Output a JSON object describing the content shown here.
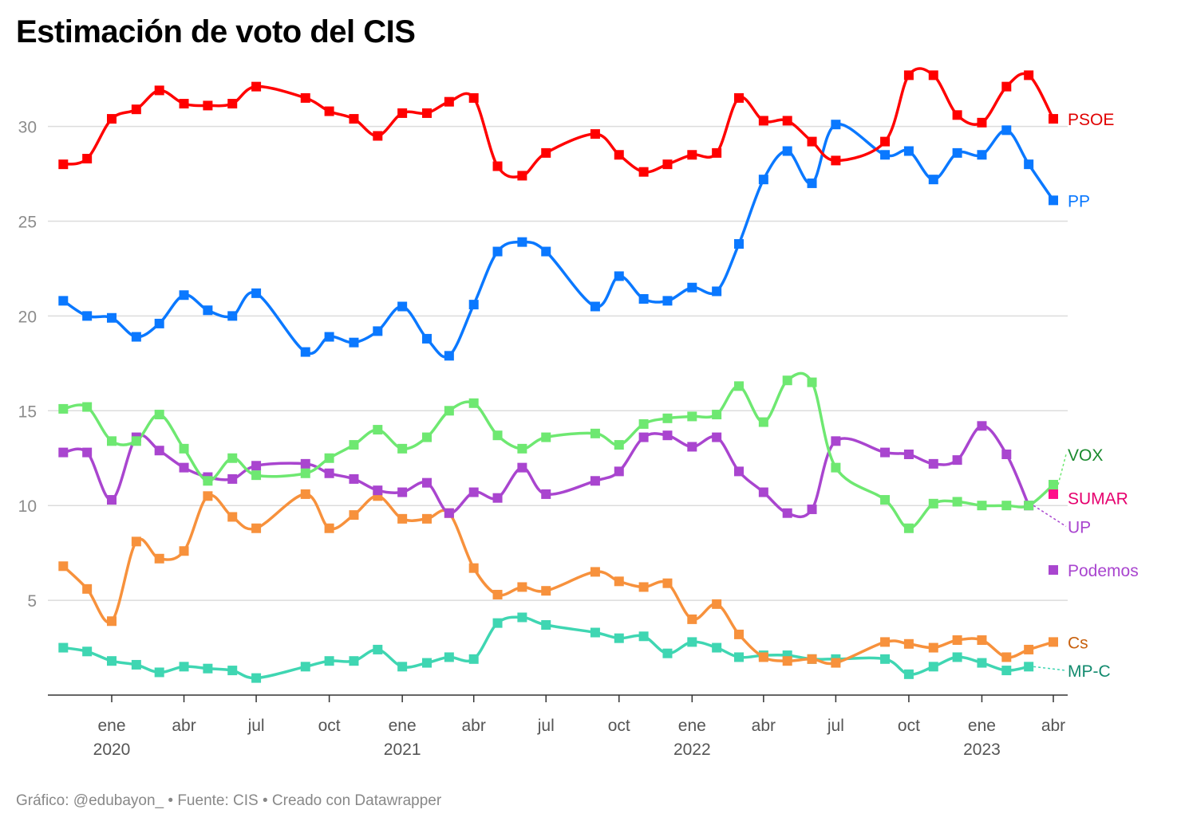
{
  "chart_data": {
    "type": "line",
    "title": "Estimación de voto del CIS",
    "source_note": "Gráfico: @edubayon_ • Fuente: CIS • Creado con Datawrapper",
    "ylim": [
      0,
      32.8
    ],
    "yticks": [
      5,
      10,
      15,
      20,
      25,
      30
    ],
    "xlim": [
      "2019-10-15",
      "2023-04-10"
    ],
    "grid": true,
    "legend": "inline labels at right end of lines",
    "xticks": [
      {
        "date": "2020-01-01",
        "month": "ene",
        "year": "2020"
      },
      {
        "date": "2020-04-01",
        "month": "abr",
        "year": ""
      },
      {
        "date": "2020-07-01",
        "month": "jul",
        "year": ""
      },
      {
        "date": "2020-10-01",
        "month": "oct",
        "year": ""
      },
      {
        "date": "2021-01-01",
        "month": "ene",
        "year": "2021"
      },
      {
        "date": "2021-04-01",
        "month": "abr",
        "year": ""
      },
      {
        "date": "2021-07-01",
        "month": "jul",
        "year": ""
      },
      {
        "date": "2021-10-01",
        "month": "oct",
        "year": ""
      },
      {
        "date": "2022-01-01",
        "month": "ene",
        "year": "2022"
      },
      {
        "date": "2022-04-01",
        "month": "abr",
        "year": ""
      },
      {
        "date": "2022-07-01",
        "month": "jul",
        "year": ""
      },
      {
        "date": "2022-10-01",
        "month": "oct",
        "year": ""
      },
      {
        "date": "2023-01-01",
        "month": "ene",
        "year": "2023"
      },
      {
        "date": "2023-04-01",
        "month": "abr",
        "year": ""
      }
    ],
    "series": [
      {
        "name": "PSOE",
        "color": "#ff0000",
        "label_color": "#e00000",
        "points": [
          [
            "2019-11-01",
            28.0
          ],
          [
            "2019-12-01",
            28.3
          ],
          [
            "2020-01-01",
            30.4
          ],
          [
            "2020-02-01",
            30.9
          ],
          [
            "2020-03-01",
            31.9
          ],
          [
            "2020-04-01",
            31.2
          ],
          [
            "2020-05-01",
            31.1
          ],
          [
            "2020-06-01",
            31.2
          ],
          [
            "2020-07-01",
            32.1
          ],
          [
            "2020-09-01",
            31.5
          ],
          [
            "2020-10-01",
            30.8
          ],
          [
            "2020-11-01",
            30.4
          ],
          [
            "2020-12-01",
            29.5
          ],
          [
            "2021-01-01",
            30.7
          ],
          [
            "2021-02-01",
            30.7
          ],
          [
            "2021-03-01",
            31.3
          ],
          [
            "2021-04-01",
            31.5
          ],
          [
            "2021-05-01",
            27.9
          ],
          [
            "2021-06-01",
            27.4
          ],
          [
            "2021-07-01",
            28.6
          ],
          [
            "2021-09-01",
            29.6
          ],
          [
            "2021-10-01",
            28.5
          ],
          [
            "2021-11-01",
            27.6
          ],
          [
            "2021-12-01",
            28.0
          ],
          [
            "2022-01-01",
            28.5
          ],
          [
            "2022-02-01",
            28.6
          ],
          [
            "2022-03-01",
            31.5
          ],
          [
            "2022-04-01",
            30.3
          ],
          [
            "2022-05-01",
            30.3
          ],
          [
            "2022-06-01",
            29.2
          ],
          [
            "2022-07-01",
            28.2
          ],
          [
            "2022-09-01",
            29.2
          ],
          [
            "2022-10-01",
            32.7
          ],
          [
            "2022-11-01",
            32.7
          ],
          [
            "2022-12-01",
            30.6
          ],
          [
            "2023-01-01",
            30.2
          ],
          [
            "2023-02-01",
            32.1
          ],
          [
            "2023-03-01",
            32.7
          ],
          [
            "2023-04-01",
            30.4
          ]
        ]
      },
      {
        "name": "PP",
        "color": "#0a78ff",
        "label_color": "#0a78ff",
        "points": [
          [
            "2019-11-01",
            20.8
          ],
          [
            "2019-12-01",
            20.0
          ],
          [
            "2020-01-01",
            19.9
          ],
          [
            "2020-02-01",
            18.9
          ],
          [
            "2020-03-01",
            19.6
          ],
          [
            "2020-04-01",
            21.1
          ],
          [
            "2020-05-01",
            20.3
          ],
          [
            "2020-06-01",
            20.0
          ],
          [
            "2020-07-01",
            21.2
          ],
          [
            "2020-09-01",
            18.1
          ],
          [
            "2020-10-01",
            18.9
          ],
          [
            "2020-11-01",
            18.6
          ],
          [
            "2020-12-01",
            19.2
          ],
          [
            "2021-01-01",
            20.5
          ],
          [
            "2021-02-01",
            18.8
          ],
          [
            "2021-03-01",
            17.9
          ],
          [
            "2021-04-01",
            20.6
          ],
          [
            "2021-05-01",
            23.4
          ],
          [
            "2021-06-01",
            23.9
          ],
          [
            "2021-07-01",
            23.4
          ],
          [
            "2021-09-01",
            20.5
          ],
          [
            "2021-10-01",
            22.1
          ],
          [
            "2021-11-01",
            20.9
          ],
          [
            "2021-12-01",
            20.8
          ],
          [
            "2022-01-01",
            21.5
          ],
          [
            "2022-02-01",
            21.3
          ],
          [
            "2022-03-01",
            23.8
          ],
          [
            "2022-04-01",
            27.2
          ],
          [
            "2022-05-01",
            28.7
          ],
          [
            "2022-06-01",
            27.0
          ],
          [
            "2022-07-01",
            30.1
          ],
          [
            "2022-09-01",
            28.5
          ],
          [
            "2022-10-01",
            28.7
          ],
          [
            "2022-11-01",
            27.2
          ],
          [
            "2022-12-01",
            28.6
          ],
          [
            "2023-01-01",
            28.5
          ],
          [
            "2023-02-01",
            29.8
          ],
          [
            "2023-03-01",
            28.0
          ],
          [
            "2023-04-01",
            26.1
          ]
        ]
      },
      {
        "name": "VOX",
        "color": "#6ee871",
        "label_color": "#1a8a2e",
        "label_offset": 1.6,
        "points": [
          [
            "2019-11-01",
            15.1
          ],
          [
            "2019-12-01",
            15.2
          ],
          [
            "2020-01-01",
            13.4
          ],
          [
            "2020-02-01",
            13.4
          ],
          [
            "2020-03-01",
            14.8
          ],
          [
            "2020-04-01",
            13.0
          ],
          [
            "2020-05-01",
            11.3
          ],
          [
            "2020-06-01",
            12.5
          ],
          [
            "2020-07-01",
            11.6
          ],
          [
            "2020-09-01",
            11.7
          ],
          [
            "2020-10-01",
            12.5
          ],
          [
            "2020-11-01",
            13.2
          ],
          [
            "2020-12-01",
            14.0
          ],
          [
            "2021-01-01",
            13.0
          ],
          [
            "2021-02-01",
            13.6
          ],
          [
            "2021-03-01",
            15.0
          ],
          [
            "2021-04-01",
            15.4
          ],
          [
            "2021-05-01",
            13.7
          ],
          [
            "2021-06-01",
            13.0
          ],
          [
            "2021-07-01",
            13.6
          ],
          [
            "2021-09-01",
            13.8
          ],
          [
            "2021-10-01",
            13.2
          ],
          [
            "2021-11-01",
            14.3
          ],
          [
            "2021-12-01",
            14.6
          ],
          [
            "2022-01-01",
            14.7
          ],
          [
            "2022-02-01",
            14.8
          ],
          [
            "2022-03-01",
            16.3
          ],
          [
            "2022-04-01",
            14.4
          ],
          [
            "2022-05-01",
            16.6
          ],
          [
            "2022-06-01",
            16.5
          ],
          [
            "2022-07-01",
            12.0
          ],
          [
            "2022-09-01",
            10.3
          ],
          [
            "2022-10-01",
            8.8
          ],
          [
            "2022-11-01",
            10.1
          ],
          [
            "2022-12-01",
            10.2
          ],
          [
            "2023-01-01",
            10.0
          ],
          [
            "2023-02-01",
            10.0
          ],
          [
            "2023-03-01",
            10.0
          ],
          [
            "2023-04-01",
            11.1
          ]
        ]
      },
      {
        "name": "SUMAR",
        "color": "#ff0d8a",
        "label_color": "#e6006e",
        "label_offset": -0.2,
        "points": [
          [
            "2023-04-01",
            10.6
          ]
        ]
      },
      {
        "name": "UP",
        "color": "#a945cf",
        "label_color": "#a945cf",
        "label_end_date": "2023-03-01",
        "label_offset": -1.1,
        "points": [
          [
            "2019-11-01",
            12.8
          ],
          [
            "2019-12-01",
            12.8
          ],
          [
            "2020-01-01",
            10.3
          ],
          [
            "2020-02-01",
            13.6
          ],
          [
            "2020-03-01",
            12.9
          ],
          [
            "2020-04-01",
            12.0
          ],
          [
            "2020-05-01",
            11.5
          ],
          [
            "2020-06-01",
            11.4
          ],
          [
            "2020-07-01",
            12.1
          ],
          [
            "2020-09-01",
            12.2
          ],
          [
            "2020-10-01",
            11.7
          ],
          [
            "2020-11-01",
            11.4
          ],
          [
            "2020-12-01",
            10.8
          ],
          [
            "2021-01-01",
            10.7
          ],
          [
            "2021-02-01",
            11.2
          ],
          [
            "2021-03-01",
            9.6
          ],
          [
            "2021-04-01",
            10.7
          ],
          [
            "2021-05-01",
            10.4
          ],
          [
            "2021-06-01",
            12.0
          ],
          [
            "2021-07-01",
            10.6
          ],
          [
            "2021-09-01",
            11.3
          ],
          [
            "2021-10-01",
            11.8
          ],
          [
            "2021-11-01",
            13.6
          ],
          [
            "2021-12-01",
            13.7
          ],
          [
            "2022-01-01",
            13.1
          ],
          [
            "2022-02-01",
            13.6
          ],
          [
            "2022-03-01",
            11.8
          ],
          [
            "2022-04-01",
            10.7
          ],
          [
            "2022-05-01",
            9.6
          ],
          [
            "2022-06-01",
            9.8
          ],
          [
            "2022-07-01",
            13.4
          ],
          [
            "2022-09-01",
            12.8
          ],
          [
            "2022-10-01",
            12.7
          ],
          [
            "2022-11-01",
            12.2
          ],
          [
            "2022-12-01",
            12.4
          ],
          [
            "2023-01-01",
            14.2
          ],
          [
            "2023-02-01",
            12.7
          ],
          [
            "2023-03-01",
            10.0
          ]
        ]
      },
      {
        "name": "Podemos",
        "color": "#a945cf",
        "label_color": "#a945cf",
        "points": [
          [
            "2023-04-01",
            6.6
          ]
        ]
      },
      {
        "name": "Cs",
        "color": "#f7913c",
        "label_color": "#c8610e",
        "points": [
          [
            "2019-11-01",
            6.8
          ],
          [
            "2019-12-01",
            5.6
          ],
          [
            "2020-01-01",
            3.9
          ],
          [
            "2020-02-01",
            8.1
          ],
          [
            "2020-03-01",
            7.2
          ],
          [
            "2020-04-01",
            7.6
          ],
          [
            "2020-05-01",
            10.5
          ],
          [
            "2020-06-01",
            9.4
          ],
          [
            "2020-07-01",
            8.8
          ],
          [
            "2020-09-01",
            10.6
          ],
          [
            "2020-10-01",
            8.8
          ],
          [
            "2020-11-01",
            9.5
          ],
          [
            "2020-12-01",
            10.5
          ],
          [
            "2021-01-01",
            9.3
          ],
          [
            "2021-02-01",
            9.3
          ],
          [
            "2021-03-01",
            9.6
          ],
          [
            "2021-04-01",
            6.7
          ],
          [
            "2021-05-01",
            5.3
          ],
          [
            "2021-06-01",
            5.7
          ],
          [
            "2021-07-01",
            5.5
          ],
          [
            "2021-09-01",
            6.5
          ],
          [
            "2021-10-01",
            6.0
          ],
          [
            "2021-11-01",
            5.7
          ],
          [
            "2021-12-01",
            5.9
          ],
          [
            "2022-01-01",
            4.0
          ],
          [
            "2022-02-01",
            4.8
          ],
          [
            "2022-03-01",
            3.2
          ],
          [
            "2022-04-01",
            2.0
          ],
          [
            "2022-05-01",
            1.8
          ],
          [
            "2022-06-01",
            1.9
          ],
          [
            "2022-07-01",
            1.7
          ],
          [
            "2022-09-01",
            2.8
          ],
          [
            "2022-10-01",
            2.7
          ],
          [
            "2022-11-01",
            2.5
          ],
          [
            "2022-12-01",
            2.9
          ],
          [
            "2023-01-01",
            2.9
          ],
          [
            "2023-02-01",
            2.0
          ],
          [
            "2023-03-01",
            2.4
          ],
          [
            "2023-04-01",
            2.8
          ]
        ]
      },
      {
        "name": "MP-C",
        "color": "#3fd6b2",
        "label_color": "#128a6e",
        "label_end_date": "2023-03-01",
        "label_offset": -0.2,
        "points": [
          [
            "2019-11-01",
            2.5
          ],
          [
            "2019-12-01",
            2.3
          ],
          [
            "2020-01-01",
            1.8
          ],
          [
            "2020-02-01",
            1.6
          ],
          [
            "2020-03-01",
            1.2
          ],
          [
            "2020-04-01",
            1.5
          ],
          [
            "2020-05-01",
            1.4
          ],
          [
            "2020-06-01",
            1.3
          ],
          [
            "2020-07-01",
            0.9
          ],
          [
            "2020-09-01",
            1.5
          ],
          [
            "2020-10-01",
            1.8
          ],
          [
            "2020-11-01",
            1.8
          ],
          [
            "2020-12-01",
            2.4
          ],
          [
            "2021-01-01",
            1.5
          ],
          [
            "2021-02-01",
            1.7
          ],
          [
            "2021-03-01",
            2.0
          ],
          [
            "2021-04-01",
            1.9
          ],
          [
            "2021-05-01",
            3.8
          ],
          [
            "2021-06-01",
            4.1
          ],
          [
            "2021-07-01",
            3.7
          ],
          [
            "2021-09-01",
            3.3
          ],
          [
            "2021-10-01",
            3.0
          ],
          [
            "2021-11-01",
            3.1
          ],
          [
            "2021-12-01",
            2.2
          ],
          [
            "2022-01-01",
            2.8
          ],
          [
            "2022-02-01",
            2.5
          ],
          [
            "2022-03-01",
            2.0
          ],
          [
            "2022-04-01",
            2.1
          ],
          [
            "2022-05-01",
            2.1
          ],
          [
            "2022-06-01",
            1.9
          ],
          [
            "2022-07-01",
            1.9
          ],
          [
            "2022-09-01",
            1.9
          ],
          [
            "2022-10-01",
            1.1
          ],
          [
            "2022-11-01",
            1.5
          ],
          [
            "2022-12-01",
            2.0
          ],
          [
            "2023-01-01",
            1.7
          ],
          [
            "2023-02-01",
            1.3
          ],
          [
            "2023-03-01",
            1.5
          ]
        ]
      }
    ]
  }
}
